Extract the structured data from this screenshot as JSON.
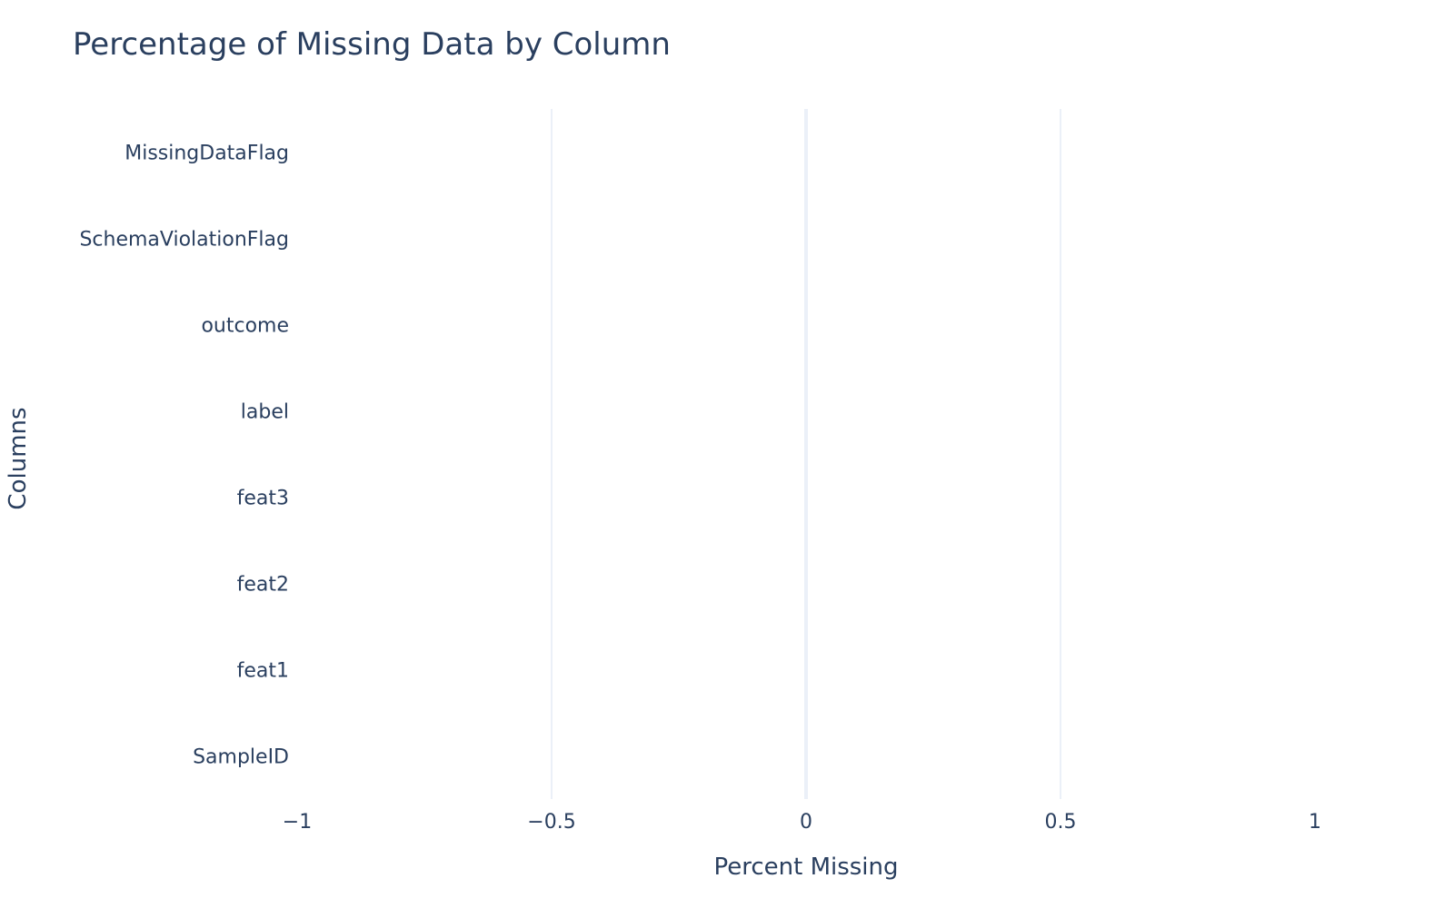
{
  "chart_data": {
    "type": "bar",
    "orientation": "horizontal",
    "title": "Percentage of Missing Data by Column",
    "xlabel": "Percent Missing",
    "ylabel": "Columns",
    "categories": [
      "SampleID",
      "feat1",
      "feat2",
      "feat3",
      "label",
      "outcome",
      "SchemaViolationFlag",
      "MissingDataFlag"
    ],
    "values": [
      0,
      0,
      0,
      0,
      0,
      0,
      0,
      0
    ],
    "xlim": [
      -1,
      1
    ],
    "xticks": [
      -1,
      -0.5,
      0,
      0.5,
      1
    ],
    "xtick_labels": [
      "−1",
      "−0.5",
      "0",
      "0.5",
      "1"
    ],
    "grid": true,
    "colors": {
      "text": "#2a3f5f",
      "grid": "#ebf0f8",
      "bar": "#636efa",
      "background": "#ffffff"
    }
  }
}
